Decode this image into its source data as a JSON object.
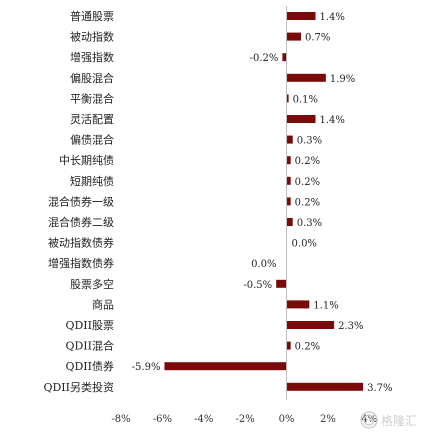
{
  "chart_data": {
    "type": "bar",
    "orientation": "horizontal",
    "categories": [
      "普通股票",
      "被动指数",
      "增强指数",
      "偏股混合",
      "平衡混合",
      "灵活配置",
      "偏债混合",
      "中长期纯债",
      "短期纯债",
      "混合债券一级",
      "混合债券二级",
      "被动指数债券",
      "增强指数债券",
      "股票多空",
      "商品",
      "QDII股票",
      "QDII混合",
      "QDII债券",
      "QDII另类投资"
    ],
    "values": [
      1.4,
      0.7,
      -0.2,
      1.9,
      0.1,
      1.4,
      0.3,
      0.2,
      0.2,
      0.2,
      0.3,
      0.0,
      0.0,
      -0.5,
      1.1,
      2.3,
      0.2,
      -5.9,
      3.7
    ],
    "data_labels": [
      "1.4%",
      "0.7%",
      "-0.2%",
      "1.9%",
      "0.1%",
      "1.4%",
      "0.3%",
      "0.2%",
      "0.2%",
      "0.2%",
      "0.3%",
      "0.0%",
      "0.0%",
      "-0.5%",
      "1.1%",
      "2.3%",
      "0.2%",
      "-5.9%",
      "3.7%"
    ],
    "xlim": [
      -8,
      5
    ],
    "xticks": [
      -8,
      -6,
      -4,
      -2,
      0,
      2,
      4
    ],
    "xtick_labels": [
      "-8%",
      "-6%",
      "-4%",
      "-2%",
      "0%",
      "2%",
      "4%"
    ],
    "title": "",
    "xlabel": "",
    "ylabel": "",
    "grid": false,
    "legend": "none",
    "bar_color": "#7a0a0a"
  },
  "watermark": {
    "text": "格隆汇",
    "icon": "glh-logo-icon"
  }
}
